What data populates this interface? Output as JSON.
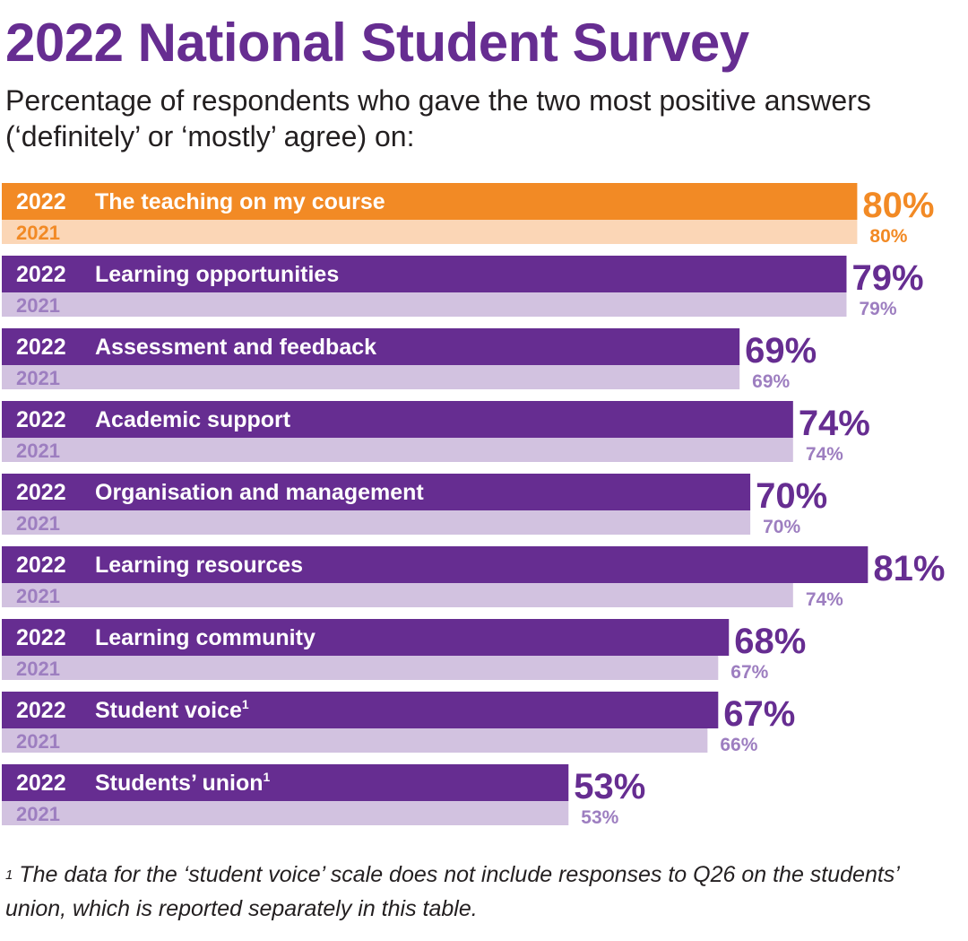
{
  "title": "2022 National Student Survey",
  "subtitle": "Percentage of respondents who gave the two most positive answers (‘definitely’ or ‘mostly’ agree) on:",
  "footnote": {
    "marker": "1",
    "text": "The data for the ‘student voice’ scale does not include responses to Q26 on the students’ union, which is reported separately in this table."
  },
  "colors": {
    "title": "#662d91",
    "highlight_2022": "#f28a25",
    "highlight_2021": "#fbd6b6",
    "bar_2022": "#662d91",
    "bar_2021": "#d2c2e0",
    "label_2021": "#9d7ec0",
    "text_on_bar": "#ffffff"
  },
  "chart_data": {
    "type": "bar",
    "orientation": "horizontal",
    "title": "2022 National Student Survey",
    "unit": "%",
    "series": [
      {
        "name": "2022",
        "values": [
          80,
          79,
          69,
          74,
          70,
          81,
          68,
          67,
          53
        ]
      },
      {
        "name": "2021",
        "values": [
          80,
          79,
          69,
          74,
          70,
          74,
          67,
          66,
          53
        ]
      }
    ],
    "categories": [
      {
        "label": "The teaching on my course",
        "footnote": "",
        "highlight": true
      },
      {
        "label": "Learning opportunities",
        "footnote": "",
        "highlight": false
      },
      {
        "label": "Assessment and feedback",
        "footnote": "",
        "highlight": false
      },
      {
        "label": "Academic support",
        "footnote": "",
        "highlight": false
      },
      {
        "label": "Organisation and management",
        "footnote": "",
        "highlight": false
      },
      {
        "label": "Learning resources",
        "footnote": "",
        "highlight": false
      },
      {
        "label": "Learning community",
        "footnote": "",
        "highlight": false
      },
      {
        "label": "Student voice",
        "footnote": "1",
        "highlight": false
      },
      {
        "label": "Students’ union",
        "footnote": "1",
        "highlight": false
      }
    ],
    "year_labels": {
      "current": "2022",
      "previous": "2021"
    },
    "value_labels_2022": [
      "80%",
      "79%",
      "69%",
      "74%",
      "70%",
      "81%",
      "68%",
      "67%",
      "53%"
    ],
    "value_labels_2021": [
      "80%",
      "79%",
      "69%",
      "74%",
      "70%",
      "74%",
      "67%",
      "66%",
      "53%"
    ]
  }
}
